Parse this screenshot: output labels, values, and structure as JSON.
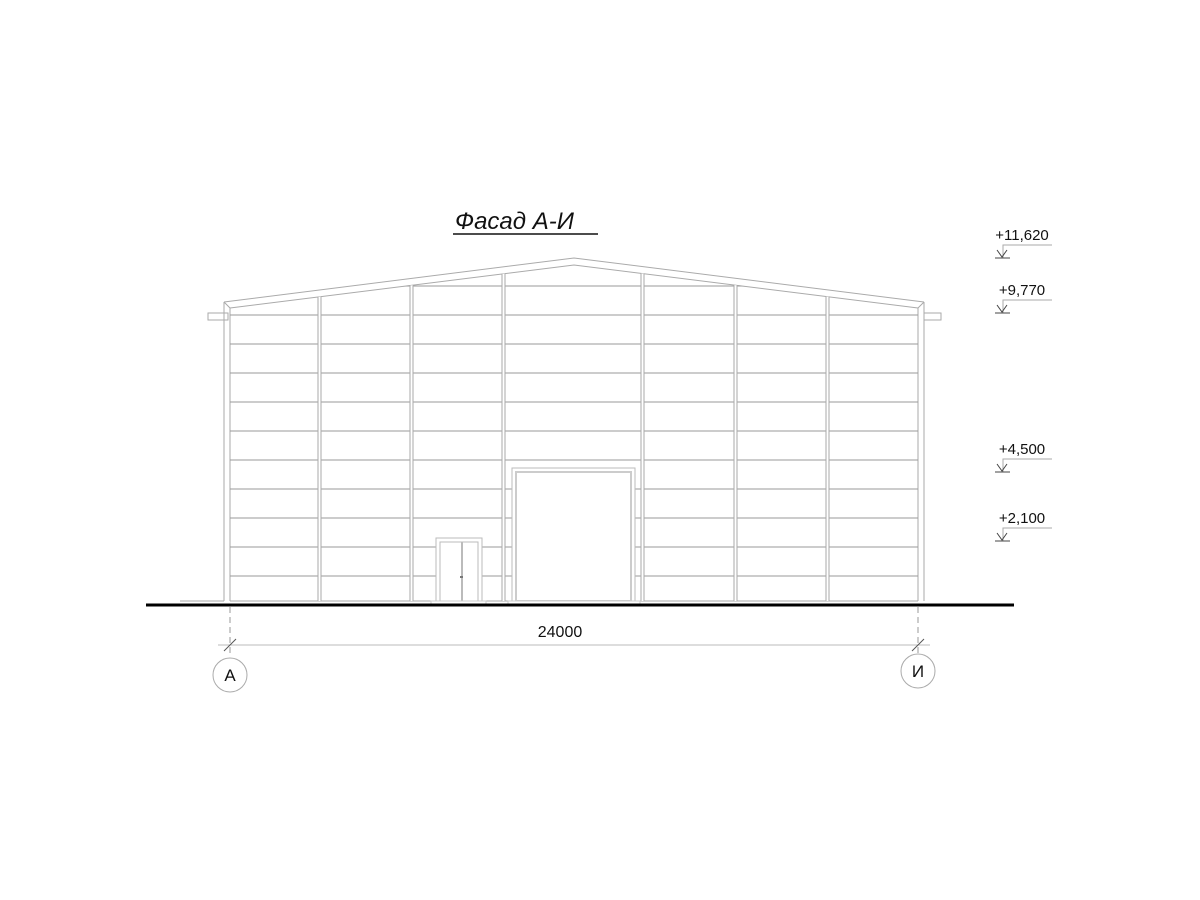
{
  "title": "Фасад А-И",
  "levels": [
    {
      "label": "+11,620"
    },
    {
      "label": "+9,770"
    },
    {
      "label": "+4,500"
    },
    {
      "label": "+2,100"
    }
  ],
  "dimension": {
    "label": "24000"
  },
  "axes": [
    {
      "label": "А"
    },
    {
      "label": "И"
    }
  ],
  "colors": {
    "ground": "#000000",
    "lines": "#b0b0b0"
  }
}
